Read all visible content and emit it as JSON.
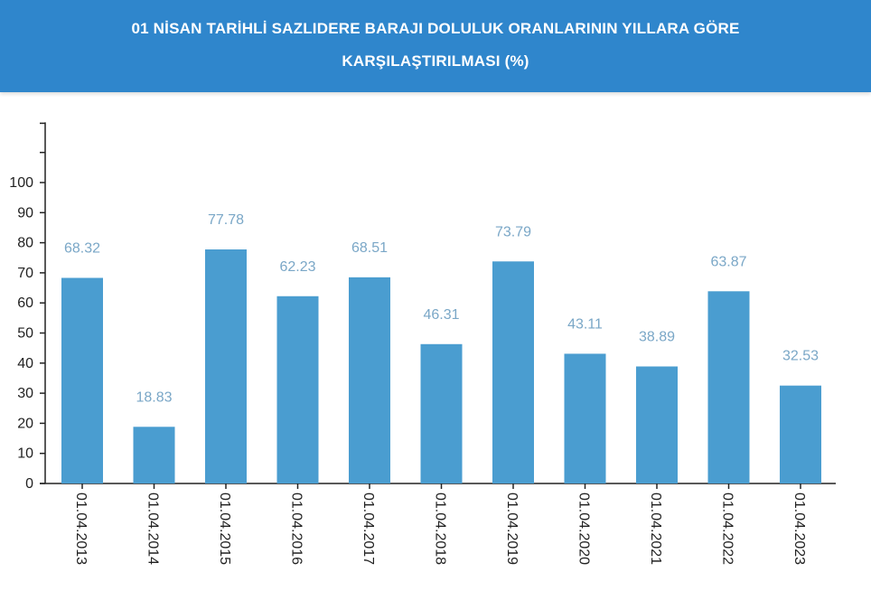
{
  "header": {
    "title_line1": "01 NİSAN TARİHLİ SAZLIDERE BARAJI DOLULUK ORANLARININ YILLARA GÖRE",
    "title_line2": "KARŞILAŞTIRILMASI (%)"
  },
  "colors": {
    "header_bg": "#2f86cc",
    "bar": "#4a9dd0",
    "data_label": "#7aa7c7",
    "axis": "#222222"
  },
  "chart_data": {
    "type": "bar",
    "title": "01 NİSAN TARİHLİ SAZLIDERE BARAJI DOLULUK ORANLARININ YILLARA GÖRE KARŞILAŞTIRILMASI (%)",
    "categories": [
      "01.04.2013",
      "01.04.2014",
      "01.04.2015",
      "01.04.2016",
      "01.04.2017",
      "01.04.2018",
      "01.04.2019",
      "01.04.2020",
      "01.04.2021",
      "01.04.2022",
      "01.04.2023"
    ],
    "values": [
      68.32,
      18.83,
      77.78,
      62.23,
      68.51,
      46.31,
      73.79,
      43.11,
      38.89,
      63.87,
      32.53
    ],
    "data_labels": [
      "68.32",
      "18.83",
      "77.78",
      "62.23",
      "68.51",
      "46.31",
      "73.79",
      "43.11",
      "38.89",
      "63.87",
      "32.53"
    ],
    "yticks": [
      0,
      10,
      20,
      30,
      40,
      50,
      60,
      70,
      80,
      90,
      100
    ],
    "ytick_labels": [
      "0",
      "10",
      "20",
      "30",
      "40",
      "50",
      "60",
      "70",
      "80",
      "90",
      "100"
    ],
    "ylim": [
      0,
      120
    ],
    "xlabel": "",
    "ylabel": "",
    "grid": false,
    "legend": "none"
  }
}
